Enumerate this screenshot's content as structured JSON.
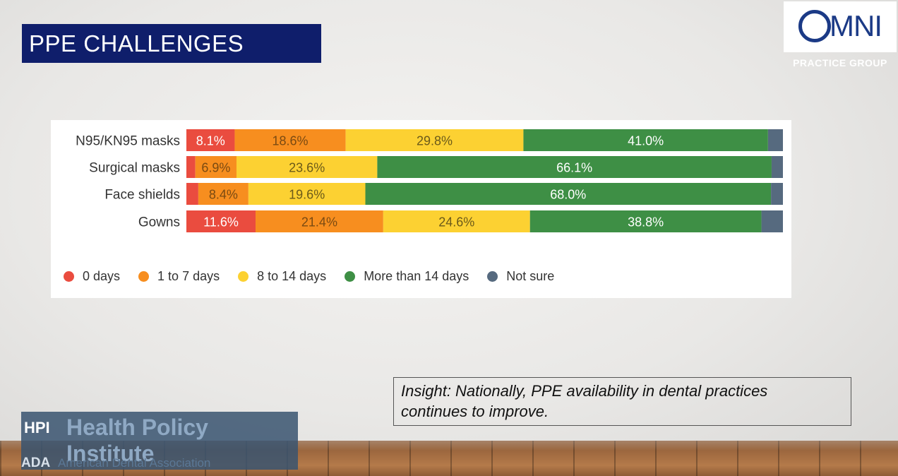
{
  "slide": {
    "title": "PPE CHALLENGES",
    "insight_line1": "Insight: Nationally, PPE availability in dental practices",
    "insight_line2": "continues to improve."
  },
  "logo": {
    "name_rest": "MNI",
    "sub": "PRACTICE GROUP"
  },
  "footer": {
    "hpi_abbr": "HPI",
    "hpi_name": "Health Policy Institute",
    "ada_abbr": "ADA",
    "ada_name": "American Dental Association"
  },
  "colors": {
    "title_bg": "#0f1e6b",
    "logo_blue": "#1b3a86"
  },
  "chart_data": {
    "type": "bar",
    "orientation": "horizontal",
    "stacked": true,
    "categories": [
      "N95/KN95 masks",
      "Surgical masks",
      "Face shields",
      "Gowns"
    ],
    "series": [
      {
        "name": "0 days",
        "color": "#ea4c3f",
        "text_color": "#ffffff",
        "values": [
          8.1,
          1.5,
          2.0,
          11.6
        ]
      },
      {
        "name": "1 to 7 days",
        "color": "#f78e1f",
        "text_color": "#7a4a12",
        "values": [
          18.6,
          6.9,
          8.4,
          21.4
        ]
      },
      {
        "name": "8 to 14 days",
        "color": "#fcd132",
        "text_color": "#6b5a1a",
        "values": [
          29.8,
          23.6,
          19.6,
          24.6
        ]
      },
      {
        "name": "More than 14 days",
        "color": "#3e8f45",
        "text_color": "#ffffff",
        "values": [
          41.0,
          66.1,
          68.0,
          38.8
        ]
      },
      {
        "name": "Not sure",
        "color": "#566a7f",
        "text_color": "#ffffff",
        "values": [
          2.5,
          1.9,
          2.0,
          3.6
        ]
      }
    ],
    "data_labels": [
      [
        "8.1%",
        "18.6%",
        "29.8%",
        "41.0%",
        ""
      ],
      [
        "",
        "6.9%",
        "23.6%",
        "66.1%",
        ""
      ],
      [
        "",
        "8.4%",
        "19.6%",
        "68.0%",
        ""
      ],
      [
        "11.6%",
        "21.4%",
        "24.6%",
        "38.8%",
        ""
      ]
    ],
    "xlim": [
      0,
      100
    ],
    "legend": "bottom",
    "grid": false
  }
}
